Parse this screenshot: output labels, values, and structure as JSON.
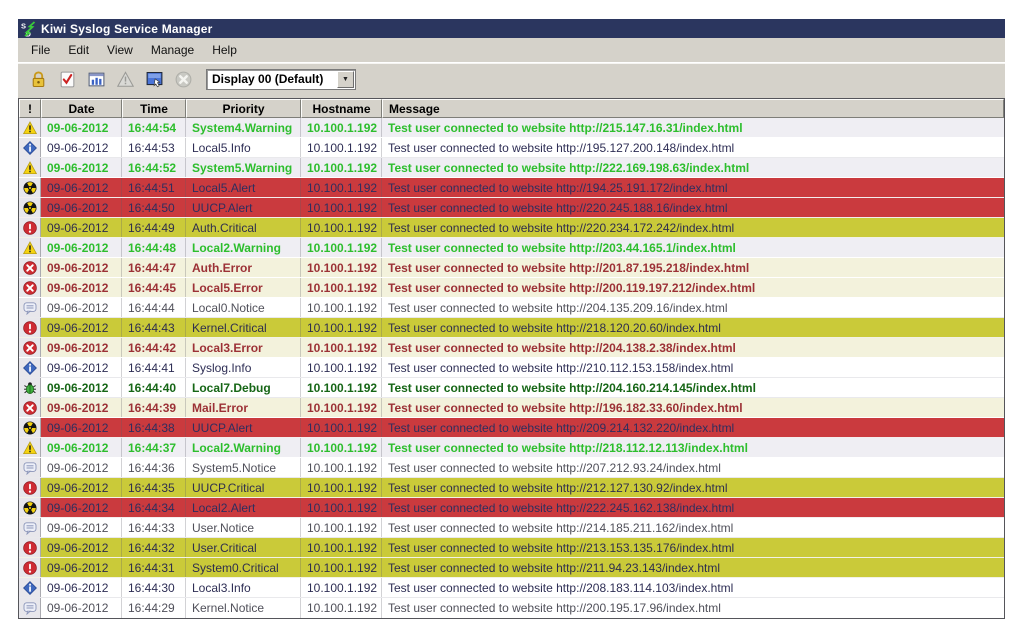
{
  "window": {
    "title": "Kiwi Syslog Service Manager",
    "app_icon": "kiwi-syslog-icon"
  },
  "menu": {
    "items": [
      "File",
      "Edit",
      "View",
      "Manage",
      "Help"
    ]
  },
  "toolbar": {
    "icons": [
      "lock-icon",
      "checklist-icon",
      "statistics-icon",
      "warning-disabled-icon",
      "display-setup-icon",
      "stop-disabled-icon"
    ],
    "display_selector": {
      "value": "Display 00 (Default)",
      "dropdown_icon": "chevron-down-icon"
    }
  },
  "colors": {
    "titlebar": "#2B365F",
    "chrome": "#D5D2CA",
    "alert_bg": "#CA3A3E",
    "critical_bg": "#CACA39",
    "error_bg": "#F3F2DC",
    "warning_bg": "#EFEEF3",
    "warning_text": "#2DBE2D",
    "error_text": "#9C3136",
    "debug_text": "#166616",
    "default_text": "#2E2E55"
  },
  "table": {
    "columns": [
      "!",
      "Date",
      "Time",
      "Priority",
      "Hostname",
      "Message"
    ],
    "rows": [
      {
        "severity": "warning",
        "icon": "warning-icon",
        "date": "09-06-2012",
        "time": "16:44:54",
        "priority": "System4.Warning",
        "hostname": "10.100.1.192",
        "message": "Test user connected to website http://215.147.16.31/index.html"
      },
      {
        "severity": "info",
        "icon": "info-icon",
        "date": "09-06-2012",
        "time": "16:44:53",
        "priority": "Local5.Info",
        "hostname": "10.100.1.192",
        "message": "Test user connected to website http://195.127.200.148/index.html"
      },
      {
        "severity": "warning",
        "icon": "warning-icon",
        "date": "09-06-2012",
        "time": "16:44:52",
        "priority": "System5.Warning",
        "hostname": "10.100.1.192",
        "message": "Test user connected to website http://222.169.198.63/index.html"
      },
      {
        "severity": "alert",
        "icon": "alert-icon",
        "date": "09-06-2012",
        "time": "16:44:51",
        "priority": "Local5.Alert",
        "hostname": "10.100.1.192",
        "message": "Test user connected to website http://194.25.191.172/index.html"
      },
      {
        "severity": "alert",
        "icon": "alert-icon",
        "date": "09-06-2012",
        "time": "16:44:50",
        "priority": "UUCP.Alert",
        "hostname": "10.100.1.192",
        "message": "Test user connected to website http://220.245.188.16/index.html"
      },
      {
        "severity": "critical",
        "icon": "critical-icon",
        "date": "09-06-2012",
        "time": "16:44:49",
        "priority": "Auth.Critical",
        "hostname": "10.100.1.192",
        "message": "Test user connected to website http://220.234.172.242/index.html"
      },
      {
        "severity": "warning",
        "icon": "warning-icon",
        "date": "09-06-2012",
        "time": "16:44:48",
        "priority": "Local2.Warning",
        "hostname": "10.100.1.192",
        "message": "Test user connected to website http://203.44.165.1/index.html"
      },
      {
        "severity": "error",
        "icon": "error-icon",
        "date": "09-06-2012",
        "time": "16:44:47",
        "priority": "Auth.Error",
        "hostname": "10.100.1.192",
        "message": "Test user connected to website http://201.87.195.218/index.html"
      },
      {
        "severity": "error",
        "icon": "error-icon",
        "date": "09-06-2012",
        "time": "16:44:45",
        "priority": "Local5.Error",
        "hostname": "10.100.1.192",
        "message": "Test user connected to website http://200.119.197.212/index.html"
      },
      {
        "severity": "notice",
        "icon": "notice-icon",
        "date": "09-06-2012",
        "time": "16:44:44",
        "priority": "Local0.Notice",
        "hostname": "10.100.1.192",
        "message": "Test user connected to website http://204.135.209.16/index.html"
      },
      {
        "severity": "critical",
        "icon": "critical-icon",
        "date": "09-06-2012",
        "time": "16:44:43",
        "priority": "Kernel.Critical",
        "hostname": "10.100.1.192",
        "message": "Test user connected to website http://218.120.20.60/index.html"
      },
      {
        "severity": "error",
        "icon": "error-icon",
        "date": "09-06-2012",
        "time": "16:44:42",
        "priority": "Local3.Error",
        "hostname": "10.100.1.192",
        "message": "Test user connected to website http://204.138.2.38/index.html"
      },
      {
        "severity": "info",
        "icon": "info-icon",
        "date": "09-06-2012",
        "time": "16:44:41",
        "priority": "Syslog.Info",
        "hostname": "10.100.1.192",
        "message": "Test user connected to website http://210.112.153.158/index.html"
      },
      {
        "severity": "debug",
        "icon": "debug-icon",
        "date": "09-06-2012",
        "time": "16:44:40",
        "priority": "Local7.Debug",
        "hostname": "10.100.1.192",
        "message": "Test user connected to website http://204.160.214.145/index.html"
      },
      {
        "severity": "error",
        "icon": "error-icon",
        "date": "09-06-2012",
        "time": "16:44:39",
        "priority": "Mail.Error",
        "hostname": "10.100.1.192",
        "message": "Test user connected to website http://196.182.33.60/index.html"
      },
      {
        "severity": "alert",
        "icon": "alert-icon",
        "date": "09-06-2012",
        "time": "16:44:38",
        "priority": "UUCP.Alert",
        "hostname": "10.100.1.192",
        "message": "Test user connected to website http://209.214.132.220/index.html"
      },
      {
        "severity": "warning",
        "icon": "warning-icon",
        "date": "09-06-2012",
        "time": "16:44:37",
        "priority": "Local2.Warning",
        "hostname": "10.100.1.192",
        "message": "Test user connected to website http://218.112.12.113/index.html"
      },
      {
        "severity": "notice",
        "icon": "notice-icon",
        "date": "09-06-2012",
        "time": "16:44:36",
        "priority": "System5.Notice",
        "hostname": "10.100.1.192",
        "message": "Test user connected to website http://207.212.93.24/index.html"
      },
      {
        "severity": "critical",
        "icon": "critical-icon",
        "date": "09-06-2012",
        "time": "16:44:35",
        "priority": "UUCP.Critical",
        "hostname": "10.100.1.192",
        "message": "Test user connected to website http://212.127.130.92/index.html"
      },
      {
        "severity": "alert",
        "icon": "alert-icon",
        "date": "09-06-2012",
        "time": "16:44:34",
        "priority": "Local2.Alert",
        "hostname": "10.100.1.192",
        "message": "Test user connected to website http://222.245.162.138/index.html"
      },
      {
        "severity": "notice",
        "icon": "notice-icon",
        "date": "09-06-2012",
        "time": "16:44:33",
        "priority": "User.Notice",
        "hostname": "10.100.1.192",
        "message": "Test user connected to website http://214.185.211.162/index.html"
      },
      {
        "severity": "critical",
        "icon": "critical-icon",
        "date": "09-06-2012",
        "time": "16:44:32",
        "priority": "User.Critical",
        "hostname": "10.100.1.192",
        "message": "Test user connected to website http://213.153.135.176/index.html"
      },
      {
        "severity": "critical",
        "icon": "critical-icon",
        "date": "09-06-2012",
        "time": "16:44:31",
        "priority": "System0.Critical",
        "hostname": "10.100.1.192",
        "message": "Test user connected to website http://211.94.23.143/index.html"
      },
      {
        "severity": "info",
        "icon": "info-icon",
        "date": "09-06-2012",
        "time": "16:44:30",
        "priority": "Local3.Info",
        "hostname": "10.100.1.192",
        "message": "Test user connected to website http://208.183.114.103/index.html"
      },
      {
        "severity": "notice",
        "icon": "notice-icon",
        "date": "09-06-2012",
        "time": "16:44:29",
        "priority": "Kernel.Notice",
        "hostname": "10.100.1.192",
        "message": "Test user connected to website http://200.195.17.96/index.html"
      }
    ]
  }
}
